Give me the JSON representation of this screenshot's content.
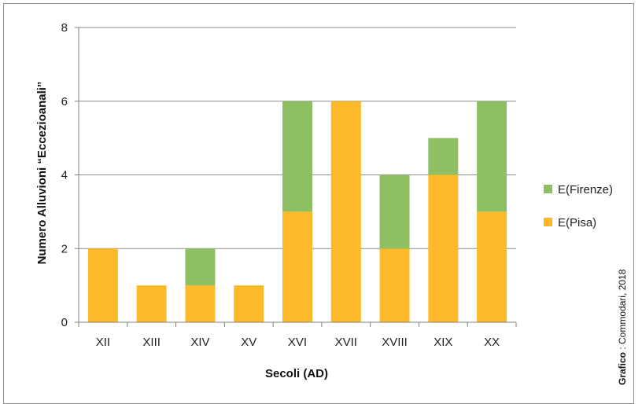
{
  "chart_data": {
    "type": "bar",
    "stacked": true,
    "categories": [
      "XII",
      "XIII",
      "XIV",
      "XV",
      "XVI",
      "XVII",
      "XVIII",
      "XIX",
      "XX"
    ],
    "series": [
      {
        "name": "E(Pisa)",
        "color": "#FDB92A",
        "values": [
          2,
          1,
          1,
          1,
          3,
          6,
          2,
          4,
          3
        ]
      },
      {
        "name": "E(Firenze)",
        "color": "#8FBF63",
        "values": [
          0,
          0,
          1,
          0,
          3,
          0,
          2,
          1,
          3
        ]
      }
    ],
    "xlabel": "Secoli  (AD)",
    "ylabel": "Numero Alluvioni “Eccezioanali”",
    "ylim": [
      0,
      8
    ],
    "yticks": [
      0,
      2,
      4,
      6,
      8
    ],
    "grid": true,
    "legend_position": "right",
    "credit": {
      "bold": "Grafico",
      "rest": " : Commodari, 2018"
    }
  }
}
